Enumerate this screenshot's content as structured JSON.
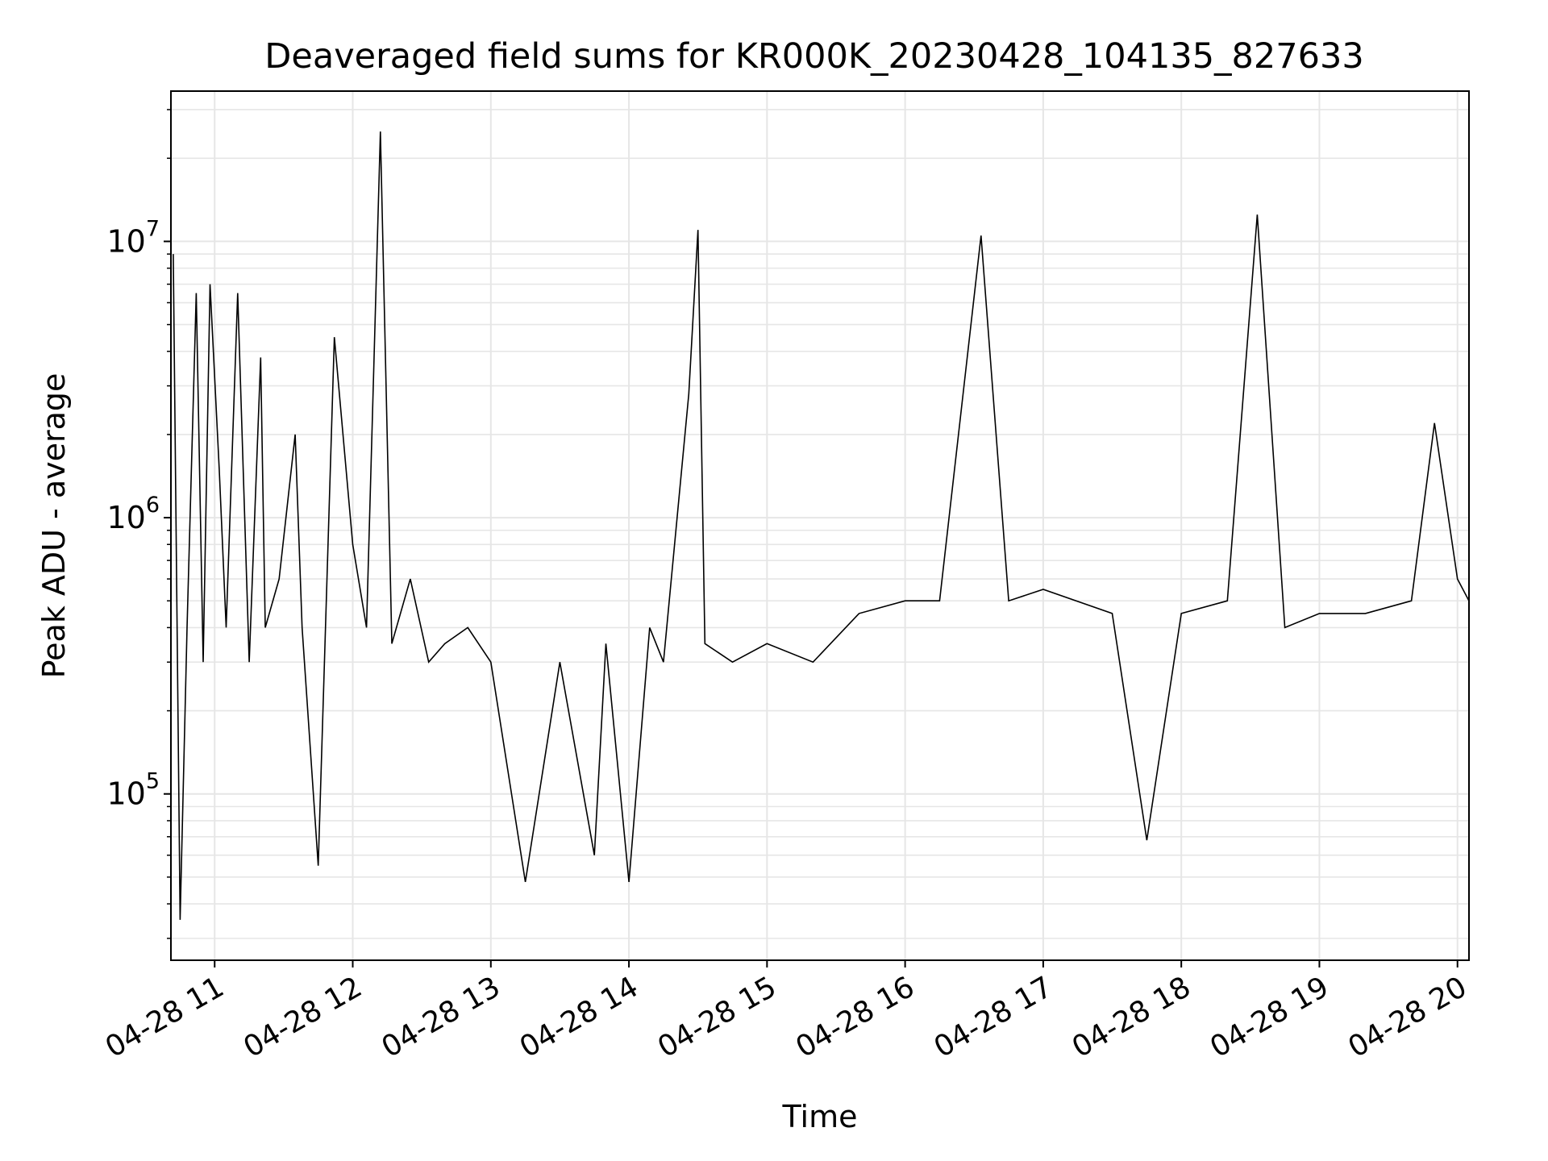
{
  "chart_data": {
    "type": "line",
    "title": "Deaveraged field sums for KR000K_20230428_104135_827633",
    "xlabel": "Time",
    "ylabel": "Peak ADU - average",
    "x_ticks": [
      "04-28 11",
      "04-28 12",
      "04-28 13",
      "04-28 14",
      "04-28 15",
      "04-28 16",
      "04-28 17",
      "04-28 18",
      "04-28 19",
      "04-28 20"
    ],
    "x_range": [
      "2023-04-28 10:41",
      "2023-04-28 20:05"
    ],
    "y_scale": "log",
    "y_ticks": [
      {
        "value": 100000,
        "base": "10",
        "exp": "5"
      },
      {
        "value": 1000000,
        "base": "10",
        "exp": "6"
      },
      {
        "value": 10000000,
        "base": "10",
        "exp": "7"
      }
    ],
    "ylim": [
      25000,
      35000000
    ],
    "grid": true,
    "line_color": "#000000",
    "grid_color": "#e6e6e6",
    "series": [
      {
        "x": [
          "2023-04-28 10:42",
          "2023-04-28 10:45",
          "2023-04-28 10:48",
          "2023-04-28 10:52",
          "2023-04-28 10:55",
          "2023-04-28 10:58",
          "2023-04-28 11:02",
          "2023-04-28 11:05",
          "2023-04-28 11:10",
          "2023-04-28 11:15",
          "2023-04-28 11:20",
          "2023-04-28 11:22",
          "2023-04-28 11:28",
          "2023-04-28 11:35",
          "2023-04-28 11:38",
          "2023-04-28 11:45",
          "2023-04-28 11:52",
          "2023-04-28 12:00",
          "2023-04-28 12:06",
          "2023-04-28 12:12",
          "2023-04-28 12:17",
          "2023-04-28 12:25",
          "2023-04-28 12:33",
          "2023-04-28 12:40",
          "2023-04-28 12:50",
          "2023-04-28 13:00",
          "2023-04-28 13:15",
          "2023-04-28 13:30",
          "2023-04-28 13:45",
          "2023-04-28 13:50",
          "2023-04-28 14:00",
          "2023-04-28 14:09",
          "2023-04-28 14:15",
          "2023-04-28 14:26",
          "2023-04-28 14:30",
          "2023-04-28 14:33",
          "2023-04-28 14:45",
          "2023-04-28 15:00",
          "2023-04-28 15:20",
          "2023-04-28 15:40",
          "2023-04-28 16:00",
          "2023-04-28 16:15",
          "2023-04-28 16:33",
          "2023-04-28 16:45",
          "2023-04-28 17:00",
          "2023-04-28 17:30",
          "2023-04-28 17:45",
          "2023-04-28 18:00",
          "2023-04-28 18:20",
          "2023-04-28 18:33",
          "2023-04-28 18:45",
          "2023-04-28 19:00",
          "2023-04-28 19:20",
          "2023-04-28 19:40",
          "2023-04-28 19:50",
          "2023-04-28 20:00",
          "2023-04-28 20:05"
        ],
        "y": [
          9000000,
          35000,
          400000,
          6500000,
          300000,
          7000000,
          1500000,
          400000,
          6500000,
          300000,
          3800000,
          400000,
          600000,
          2000000,
          400000,
          55000,
          4500000,
          800000,
          400000,
          25000000,
          350000,
          600000,
          300000,
          350000,
          400000,
          300000,
          48000,
          300000,
          60000,
          350000,
          48000,
          400000,
          300000,
          2800000,
          11000000,
          350000,
          300000,
          350000,
          300000,
          450000,
          500000,
          500000,
          10500000,
          500000,
          550000,
          450000,
          68000,
          450000,
          500000,
          12500000,
          400000,
          450000,
          450000,
          500000,
          2200000,
          600000,
          500000
        ]
      }
    ]
  }
}
